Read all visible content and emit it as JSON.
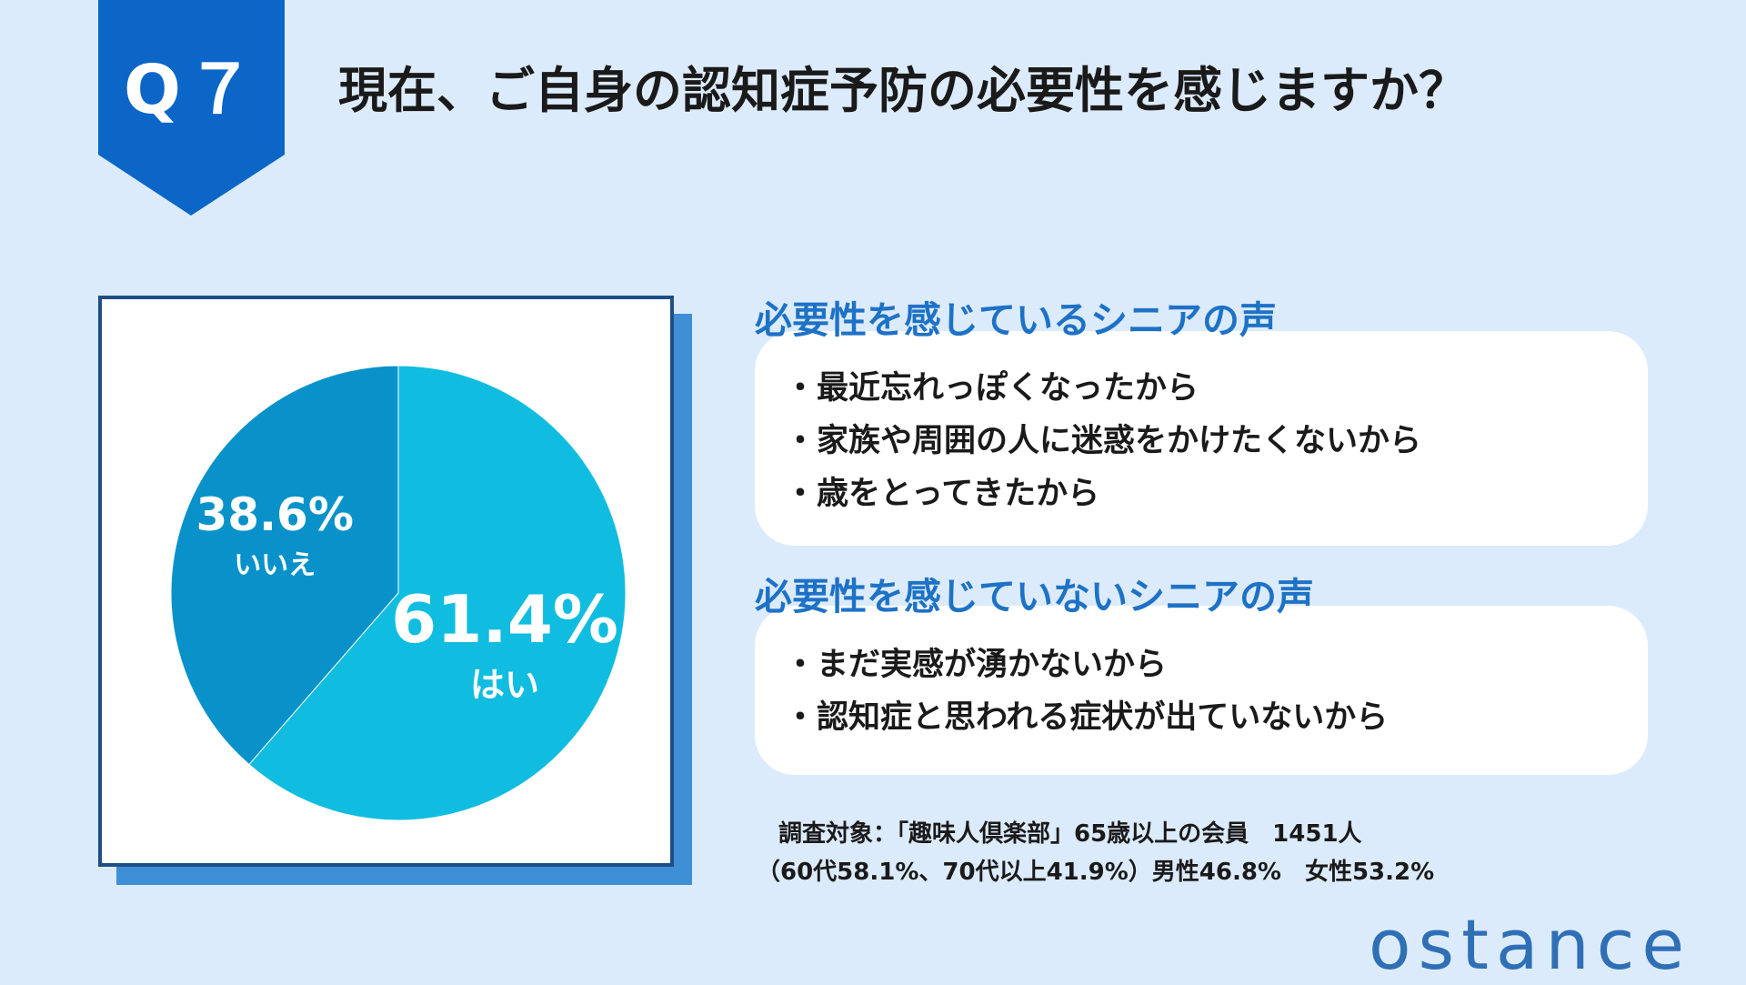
{
  "question_badge": "Q７",
  "question": "現在、ご自身の認知症予防の必要性を感じますか？",
  "colors": {
    "background": "#dcebfb",
    "badge": "#0b66c7",
    "yes_slice": "#10bde0",
    "no_slice": "#0892c9",
    "accent_text": "#1e72c6",
    "card_border": "#1f4e86",
    "card_shadow": "#3f8fd6"
  },
  "chart_data": {
    "type": "pie",
    "slices": [
      {
        "label": "はい",
        "value": 61.4,
        "value_label": "61.4%",
        "color": "#10bde0"
      },
      {
        "label": "いいえ",
        "value": 38.6,
        "value_label": "38.6%",
        "color": "#0892c9"
      }
    ],
    "start_angle": "12 o'clock",
    "direction": "clockwise"
  },
  "voices_yes": {
    "title": "必要性を感じているシニアの声",
    "bullet": "・",
    "items": [
      "最近忘れっぽくなったから",
      "家族や周囲の人に迷惑をかけたくないから",
      "歳をとってきたから"
    ]
  },
  "voices_no": {
    "title": "必要性を感じていないシニアの声",
    "bullet": "・",
    "items": [
      "まだ実感が湧かないから",
      "認知症と思われる症状が出ていないから"
    ]
  },
  "footnote": {
    "line1": "調査対象：「趣味人倶楽部」65歳以上の会員　1451人",
    "line2": "（60代58.1%、70代以上41.9%）男性46.8%　女性53.2%"
  },
  "logo": "ostance"
}
